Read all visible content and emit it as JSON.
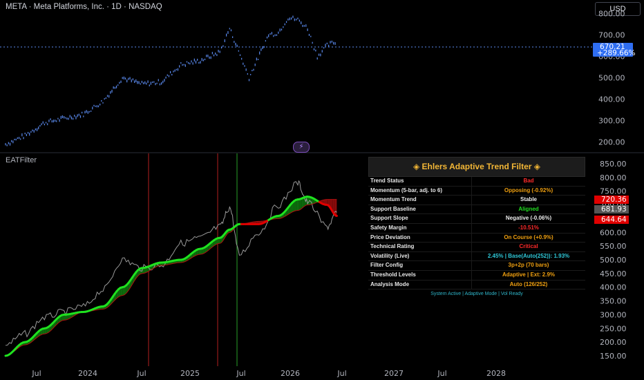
{
  "header": {
    "title": "META · Meta Platforms, Inc. · 1D · NASDAQ",
    "currency_button": "USD"
  },
  "indicator": {
    "name": "EATFilter"
  },
  "price_axis": {
    "ticks": [
      "800.00",
      "700.00",
      "600.00",
      "500.00",
      "400.00",
      "300.00",
      "200.00"
    ],
    "last_price": "670.21",
    "last_change": "+289.66%"
  },
  "indicator_axis": {
    "ticks": [
      "850.00",
      "800.00",
      "750.00",
      "700.00",
      "650.00",
      "600.00",
      "550.00",
      "500.00",
      "450.00",
      "400.00",
      "350.00",
      "300.00",
      "250.00",
      "200.00",
      "150.00"
    ],
    "label_upper": "720.36",
    "label_mid": "681.93",
    "label_lower": "644.64"
  },
  "time_axis": {
    "labels": [
      "Jul",
      "2024",
      "Jul",
      "2025",
      "Jul",
      "2026",
      "Jul",
      "2027",
      "Jul",
      "2028"
    ]
  },
  "colors": {
    "bull": "#1fe21f",
    "bear": "#e00000",
    "price": "#5b8bf0",
    "table_title": "#f2b636"
  },
  "table": {
    "title": "◈ Ehlers Adaptive Trend Filter ◈",
    "rows": [
      {
        "label": "Trend Status",
        "value": "Bad",
        "color": "#ff2a2a"
      },
      {
        "label": "Momentum (5-bar, adj. to 6)",
        "value": "Opposing (-0.92%)",
        "color": "#f0a010"
      },
      {
        "label": "Momentum Trend",
        "value": "Stable",
        "color": "#eeeeee"
      },
      {
        "label": "Support Baseline",
        "value": "Aligned",
        "color": "#22dd22"
      },
      {
        "label": "Support Slope",
        "value": "Negative (-0.06%)",
        "color": "#eeeeee"
      },
      {
        "label": "Safety Margin",
        "value": "-10.51%",
        "color": "#ff2a2a"
      },
      {
        "label": "Price Deviation",
        "value": "On Course (+0.9%)",
        "color": "#f0a010"
      },
      {
        "label": "Technical Rating",
        "value": "Critical",
        "color": "#ff2a2a"
      },
      {
        "label": "Volatility (Live)",
        "value": "2.45% | Base(Auto(252)): 1.93%",
        "color": "#2fc8d8"
      },
      {
        "label": "Filter Config",
        "value": "3p+2p (70 bars)",
        "color": "#f0a010"
      },
      {
        "label": "Threshold Levels",
        "value": "Adaptive | Ext: 2.9%",
        "color": "#f0a010"
      },
      {
        "label": "Analysis Mode",
        "value": "Auto (126/252)",
        "color": "#f0a010"
      }
    ],
    "footer": "System Active | Adaptive Mode | Vol Ready"
  },
  "chart_data": [
    {
      "type": "line",
      "title": "META · Meta Platforms, Inc. · 1D · NASDAQ",
      "x": [
        "2023-03",
        "2023-05",
        "2023-07",
        "2023-09",
        "2023-11",
        "2024-01",
        "2024-03",
        "2024-05",
        "2024-07",
        "2024-09",
        "2024-11",
        "2025-01",
        "2025-02",
        "2025-04",
        "2025-06",
        "2025-07",
        "2025-08",
        "2025-09",
        "2025-10",
        "2025-11",
        "2025-12",
        "2026-01"
      ],
      "series": [
        {
          "values": [
            190,
            230,
            290,
            310,
            330,
            390,
            500,
            470,
            480,
            560,
            580,
            620,
            730,
            500,
            700,
            710,
            780,
            770,
            730,
            600,
            650,
            670
          ]
        }
      ],
      "ylim": [
        160,
        830
      ]
    },
    {
      "type": "area",
      "title": "EATFilter",
      "x": [
        "2023-03",
        "2023-05",
        "2023-07",
        "2023-09",
        "2023-11",
        "2024-01",
        "2024-03",
        "2024-05",
        "2024-07",
        "2024-09",
        "2024-11",
        "2025-01",
        "2025-02",
        "2025-03",
        "2025-05",
        "2025-07",
        "2025-09",
        "2025-10",
        "2025-12",
        "2026-01"
      ],
      "series": [
        {
          "values": [
            150,
            200,
            250,
            300,
            310,
            330,
            400,
            470,
            490,
            500,
            540,
            580,
            610,
            630,
            630,
            660,
            720,
            730,
            700,
            660
          ]
        },
        {
          "values": [
            150,
            190,
            230,
            280,
            310,
            320,
            370,
            450,
            480,
            490,
            520,
            560,
            600,
            630,
            640,
            650,
            680,
            700,
            720,
            720
          ]
        },
        {
          "values": [
            190,
            230,
            290,
            310,
            330,
            390,
            500,
            470,
            480,
            560,
            580,
            620,
            690,
            520,
            600,
            700,
            780,
            710,
            620,
            670
          ]
        }
      ],
      "ylim": [
        120,
        870
      ]
    }
  ]
}
